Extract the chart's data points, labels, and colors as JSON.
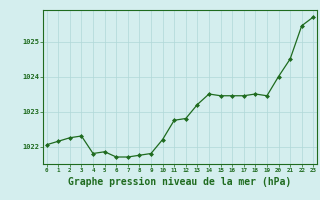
{
  "x": [
    0,
    1,
    2,
    3,
    4,
    5,
    6,
    7,
    8,
    9,
    10,
    11,
    12,
    13,
    14,
    15,
    16,
    17,
    18,
    19,
    20,
    21,
    22,
    23
  ],
  "y": [
    1022.05,
    1022.15,
    1022.25,
    1022.3,
    1021.8,
    1021.85,
    1021.7,
    1021.7,
    1021.75,
    1021.8,
    1022.2,
    1022.75,
    1022.8,
    1023.2,
    1023.5,
    1023.45,
    1023.45,
    1023.45,
    1023.5,
    1023.45,
    1024.0,
    1024.5,
    1025.45,
    1025.7
  ],
  "line_color": "#1f6b1f",
  "marker_color": "#1f6b1f",
  "bg_color": "#d4eeee",
  "grid_color": "#b0d8d8",
  "axis_color": "#1f6b1f",
  "tick_color": "#1f6b1f",
  "xlabel": "Graphe pression niveau de la mer (hPa)",
  "xlabel_fontsize": 7,
  "ylim": [
    1021.5,
    1025.9
  ],
  "yticks": [
    1022,
    1023,
    1024,
    1025
  ],
  "xticks": [
    0,
    1,
    2,
    3,
    4,
    5,
    6,
    7,
    8,
    9,
    10,
    11,
    12,
    13,
    14,
    15,
    16,
    17,
    18,
    19,
    20,
    21,
    22,
    23
  ],
  "xlim": [
    -0.3,
    23.3
  ]
}
